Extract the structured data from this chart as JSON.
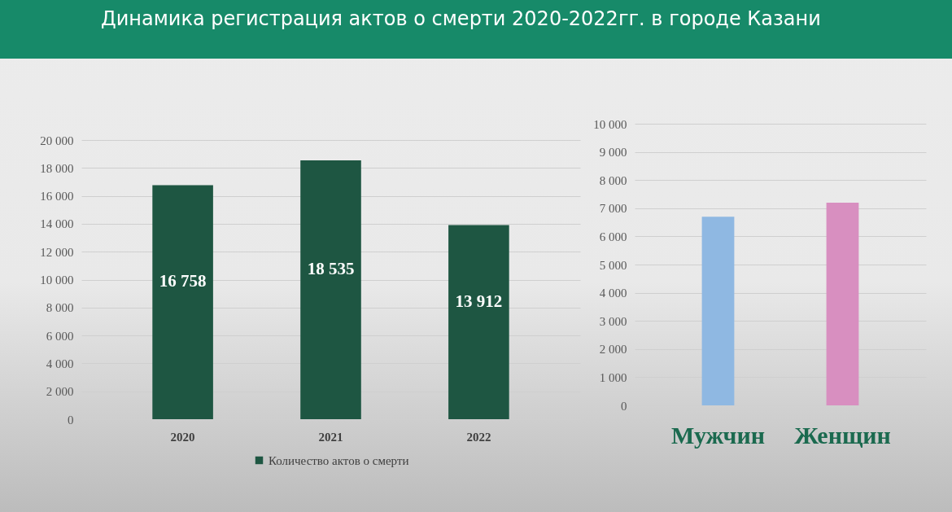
{
  "chart_data": [
    {
      "type": "bar",
      "title": "Динамика регистрация актов о смерти 2020-2022гг. в городе Казани",
      "categories": [
        "2020",
        "2021",
        "2022"
      ],
      "series": [
        {
          "name": "Количество актов о смерти",
          "color": "#1e5642",
          "values": [
            16758,
            18535,
            13912
          ],
          "value_labels": [
            "16 758",
            "18 535",
            "13 912"
          ]
        }
      ],
      "ylim": [
        0,
        20000
      ],
      "yticks": [
        0,
        {
          "value": 2000,
          "label": "2 000"
        },
        {
          "value": 4000,
          "label": "4 000"
        },
        {
          "value": 6000,
          "label": "6 000"
        },
        {
          "value": 8000,
          "label": "8 000"
        },
        {
          "value": 10000,
          "label": "10 000"
        },
        {
          "value": 12000,
          "label": "12 000"
        },
        {
          "value": 14000,
          "label": "14 000"
        },
        {
          "value": 16000,
          "label": "16 000"
        },
        {
          "value": 18000,
          "label": "18 000"
        },
        {
          "value": 20000,
          "label": "20 000"
        }
      ],
      "grid": "y",
      "legend": "bottom"
    },
    {
      "type": "bar",
      "categories": [
        "Мужчин",
        "Женщин"
      ],
      "values": [
        6700,
        7200
      ],
      "colors": [
        "#8fb8e2",
        "#d88fc0"
      ],
      "ylim": [
        0,
        10000
      ],
      "yticks": [
        0,
        {
          "value": 1000,
          "label": "1 000"
        },
        {
          "value": 2000,
          "label": "2 000"
        },
        {
          "value": 3000,
          "label": "3 000"
        },
        {
          "value": 4000,
          "label": "4 000"
        },
        {
          "value": 5000,
          "label": "5 000"
        },
        {
          "value": 6000,
          "label": "6 000"
        },
        {
          "value": 7000,
          "label": "7 000"
        },
        {
          "value": 8000,
          "label": "8 000"
        },
        {
          "value": 9000,
          "label": "9 000"
        },
        {
          "value": 10000,
          "label": "10 000"
        }
      ],
      "grid": "y"
    }
  ]
}
